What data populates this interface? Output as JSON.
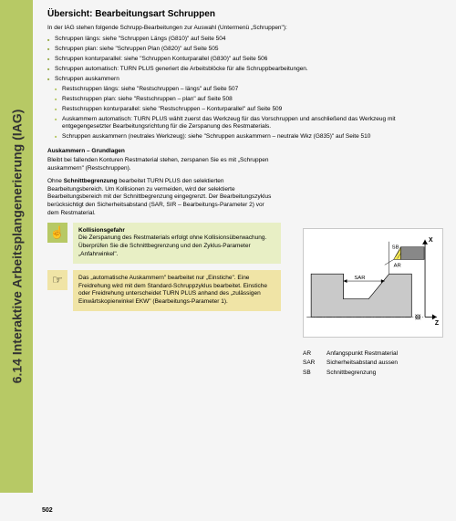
{
  "sidebar": {
    "label": "6.14 Interaktive Arbeitsplangenerierung (IAG)"
  },
  "title": "Übersicht: Bearbeitungsart Schruppen",
  "intro": "In der IAG stehen folgende Schrupp-Bearbeitungen zur Auswahl (Untermenü „Schruppen\"):",
  "bullets": [
    {
      "t": "Schruppen längs: siehe \"Schruppen Längs (G810)\" auf Seite 504"
    },
    {
      "t": "Schruppen plan: siehe \"Schruppen Plan (G820)\" auf Seite 505"
    },
    {
      "t": "Schruppen konturparallel: siehe \"Schruppen Konturparallel (G830)\" auf Seite 506"
    },
    {
      "t": "Schruppen automatisch: TURN PLUS generiert die Arbeitsblöcke für alle Schruppbearbeitungen."
    },
    {
      "t": "Schruppen auskammern"
    },
    {
      "t": "Restschruppen längs: siehe \"Restschruppen – längs\" auf Seite 507",
      "sub": true
    },
    {
      "t": "Restschruppen plan: siehe \"Restschruppen – plan\" auf Seite 508",
      "sub": true
    },
    {
      "t": "Restschruppen konturparallel: siehe \"Restschruppen – Konturparallel\" auf Seite 509",
      "sub": true
    },
    {
      "t": "Auskammern automatisch: TURN PLUS wählt zuerst das Werkzeug für das Vorschruppen und anschließend das Werkzeug mit entgegengesetzter Bearbeitungsrichtung für die Zerspanung des Restmaterials.",
      "sub": true
    },
    {
      "t": "Schruppen auskammern (neutrales Werkzeug): siehe \"Schruppen auskammern – neutrale Wkz (G835)\" auf Seite 510",
      "sub": true
    }
  ],
  "subhead": "Auskammern – Grundlagen",
  "paras": [
    "Bleibt bei fallenden Konturen Restmaterial stehen, zerspanen Sie es mit „Schruppen auskammern\" (Restschruppen).",
    "Ohne Schnittbegrenzung bearbeitet TURN PLUS den selektierten Bearbeitungsbereich. Um Kollisionen zu vermeiden, wird der selektierte Bearbeitungsbereich mit der Schnittbegrenzung eingegrenzt. Der Bearbeitungszyklus berücksichtigt den Sicherheitsabstand (SAR, SIR – Bearbeitungs-Parameter 2) vor dem Restmaterial."
  ],
  "callout1": {
    "title": "Kollisionsgefahr",
    "body": "Die Zerspanung des Restmaterials erfolgt ohne Kollisionsüberwachung. Überprüfen Sie die Schnittbegrenzung und den Zyklus-Parameter „Anfahrwinkel\"."
  },
  "callout2": {
    "body": "Das „automatische Auskammern\" bearbeitet nur „Einstiche\". Eine Freidrehung wird mit dem Standard-Schruppzyklus bearbeitet. Einstiche oder Freidrehung unterscheidet TURN PLUS anhand des „zulässigen Einwärtskopierwinkel EKW\" (Bearbeitungs-Parameter 1)."
  },
  "diagram": {
    "labels": {
      "x": "X",
      "z": "Z",
      "sb": "SB",
      "ar": "AR",
      "sar": "SAR"
    },
    "colors": {
      "background": "#ffffff",
      "border": "#c9c9c9",
      "tool_fill": "#f7e958",
      "tool_hatch": "#000000",
      "material": "#c9c9c9",
      "outline": "#000000",
      "guide": "#000000"
    }
  },
  "legend": [
    {
      "k": "AR",
      "v": "Anfangspunkt Restmaterial"
    },
    {
      "k": "SAR",
      "v": "Sicherheitsabstand aussen"
    },
    {
      "k": "SB",
      "v": "Schnittbegrenzung"
    }
  ],
  "page": "502"
}
